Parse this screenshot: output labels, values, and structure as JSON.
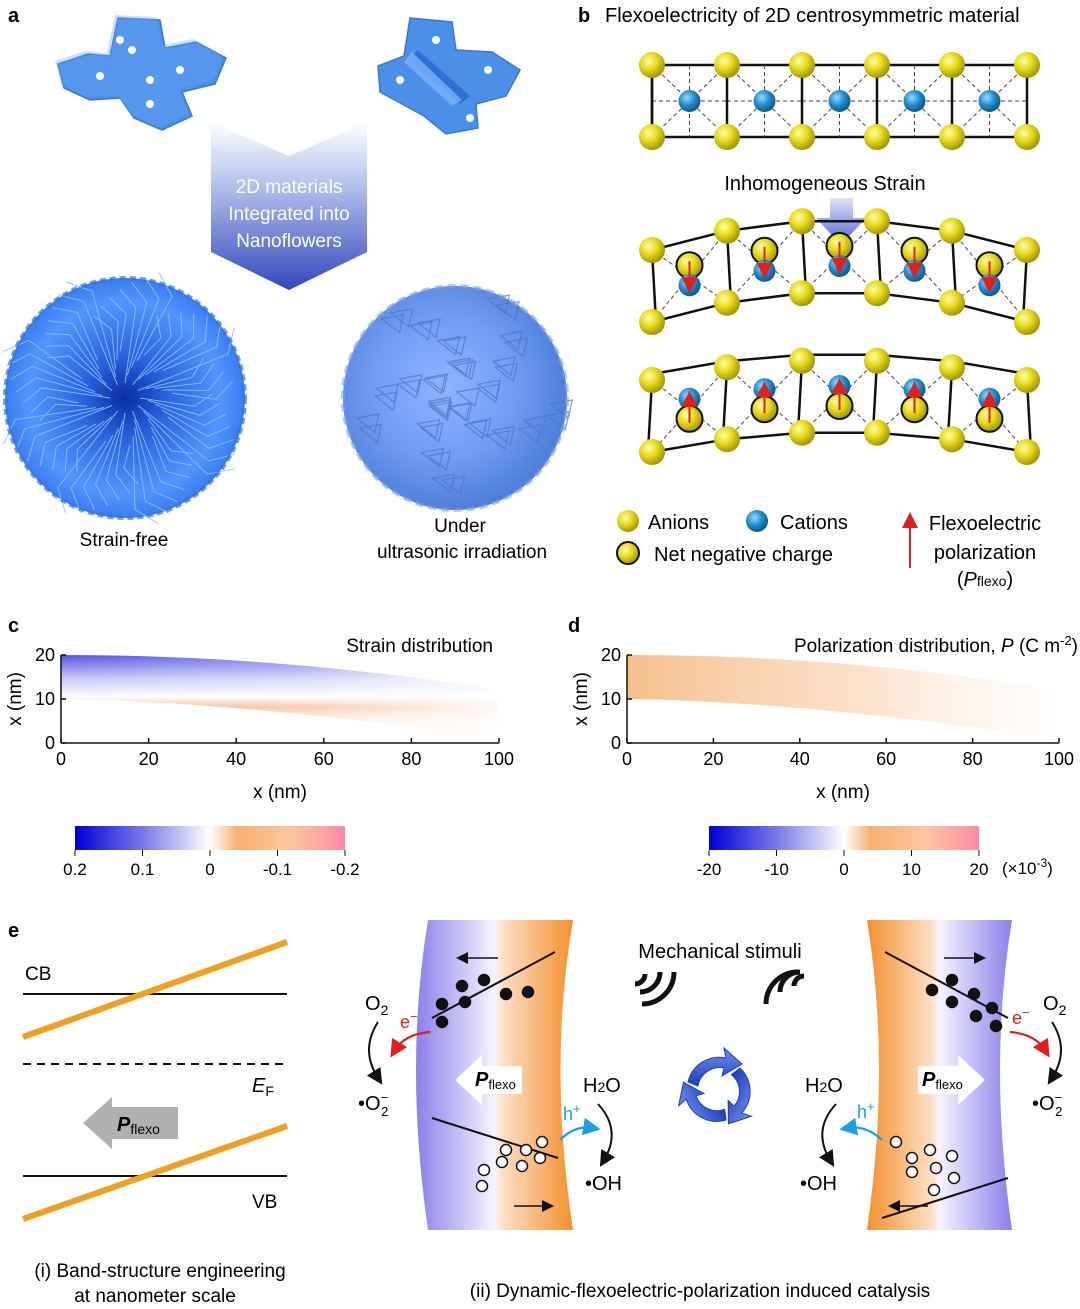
{
  "panels": {
    "a": {
      "letter": "a",
      "arrow_text": [
        "2D materials",
        "Integrated into",
        "Nanoflowers"
      ],
      "left_caption": "Strain-free",
      "right_caption": [
        "Under",
        "ultrasonic irradiation"
      ]
    },
    "b": {
      "letter": "b",
      "title": "Flexoelectricity of 2D centrosymmetric material",
      "strain_label": "Inhomogeneous Strain",
      "legend": {
        "anions": "Anions",
        "cations": "Cations",
        "net_negative": "Net negative charge",
        "polarization": [
          "Flexoelectric",
          "polarization"
        ],
        "p_symbol": "P",
        "p_sub": "flexo"
      }
    },
    "c": {
      "letter": "c",
      "title": "Strain distribution",
      "colorbar_ticks": [
        "0.2",
        "0.1",
        "0",
        "-0.1",
        "-0.2"
      ]
    },
    "d": {
      "letter": "d",
      "title_main": "Polarization distribution, ",
      "title_p": "P",
      "title_unit": " (C m",
      "title_exp": "-2",
      "title_close": ")",
      "colorbar_ticks": [
        "-20",
        "-10",
        "0",
        "10",
        "20"
      ],
      "colorbar_scale_prefix": "(×10",
      "colorbar_scale_exp": "-3",
      "colorbar_scale_suffix": ")"
    },
    "e": {
      "letter": "e",
      "cb": "CB",
      "vb": "VB",
      "ef": "E",
      "ef_sub": "F",
      "p_symbol": "P",
      "p_sub": "flexo",
      "caption_i": [
        "(i) Band-structure engineering",
        "at nanometer scale"
      ],
      "caption_ii": "(ii) Dynamic-flexoelectric-polarization induced catalysis",
      "mechanical": "Mechanical stimuli",
      "o2": "O",
      "o2_sub": "2",
      "superoxide": "•O",
      "superoxide_sub": "2",
      "superoxide_sup": "−",
      "electron": "e",
      "electron_sup": "−",
      "hole": "h",
      "hole_sup": "+",
      "h2o": "H",
      "h2o_sub": "2",
      "h2o_o": "O",
      "oh": "•OH"
    }
  },
  "chart_data": [
    {
      "type": "heatmap",
      "title": "Strain distribution",
      "xlabel": "x (nm)",
      "ylabel": "x (nm)",
      "xlim": [
        0,
        100
      ],
      "ylim": [
        0,
        20
      ],
      "xticks": [
        0,
        20,
        40,
        60,
        80,
        100
      ],
      "yticks": [
        0,
        10,
        20
      ],
      "colorbar": {
        "min": -0.2,
        "max": 0.2,
        "ticks": [
          0.2,
          0.1,
          0,
          -0.1,
          -0.2
        ]
      }
    },
    {
      "type": "heatmap",
      "title": "Polarization distribution, P (C m-2)",
      "xlabel": "x (nm)",
      "ylabel": "x (nm)",
      "xlim": [
        0,
        100
      ],
      "ylim": [
        0,
        20
      ],
      "xticks": [
        0,
        20,
        40,
        60,
        80,
        100
      ],
      "yticks": [
        0,
        10,
        20
      ],
      "colorbar": {
        "min": -20,
        "max": 20,
        "ticks": [
          -20,
          -10,
          0,
          10,
          20
        ],
        "scale": "×10-3"
      }
    }
  ],
  "colors": {
    "blue_sheet": "#4b8fe8",
    "flower_blue": "#3a7ee8",
    "anion": "#e6d80e",
    "cation": "#1f8ecf",
    "arrow_red": "#e0201e",
    "orange": "#f29f38",
    "band_orange": "#f0a020",
    "purple": "#8080e8",
    "hole_arrow": "#1aa0e0"
  }
}
